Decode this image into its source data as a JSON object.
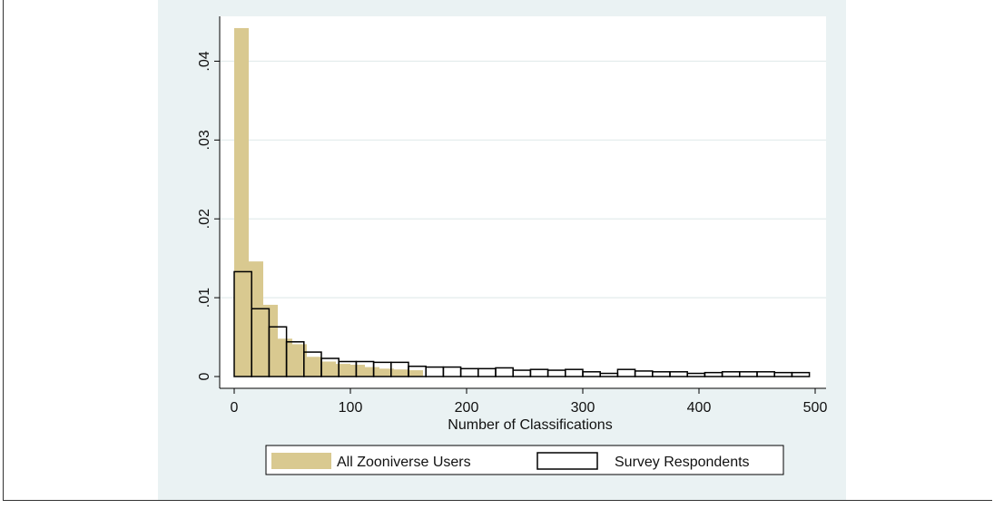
{
  "chart_data": {
    "type": "bar",
    "subtype": "overlaid-histogram",
    "title": "",
    "xlabel": "Number of Classifications",
    "ylabel": "",
    "xlim": [
      0,
      500
    ],
    "ylim": [
      0,
      0.045
    ],
    "grid": "horizontal",
    "legend_position": "bottom",
    "bin_width": 12.5,
    "x_ticks": [
      {
        "value": 0,
        "label": "0"
      },
      {
        "value": 100,
        "label": "100"
      },
      {
        "value": 200,
        "label": "200"
      },
      {
        "value": 300,
        "label": "300"
      },
      {
        "value": 400,
        "label": "400"
      },
      {
        "value": 500,
        "label": "500"
      }
    ],
    "y_ticks": [
      {
        "value": 0,
        "label": "0"
      },
      {
        "value": 0.01,
        "label": ".01"
      },
      {
        "value": 0.02,
        "label": ".02"
      },
      {
        "value": 0.03,
        "label": ".03"
      },
      {
        "value": 0.04,
        "label": ".04"
      }
    ],
    "series": [
      {
        "name": "All Zooniverse Users",
        "style": "filled",
        "color": "#d9c990",
        "x": [
          0,
          12.5,
          25,
          37.5,
          50,
          62.5,
          75,
          87.5,
          100,
          112.5,
          125,
          137.5,
          150
        ],
        "values": [
          0.0442,
          0.0146,
          0.0091,
          0.0048,
          0.0041,
          0.0025,
          0.0019,
          0.0016,
          0.0015,
          0.0012,
          0.001,
          0.0009,
          0.0008
        ]
      },
      {
        "name": "Survey Respondents",
        "style": "outline",
        "color": "#000000",
        "x": [
          0,
          15,
          30,
          45,
          60,
          75,
          90,
          105,
          120,
          135,
          150,
          165,
          180,
          195,
          210,
          225,
          240,
          255,
          270,
          285,
          300,
          315,
          330,
          345,
          360,
          375,
          390,
          405,
          420,
          435,
          450,
          465,
          480
        ],
        "values": [
          0.0133,
          0.0086,
          0.0063,
          0.0044,
          0.0031,
          0.0023,
          0.0019,
          0.0019,
          0.0018,
          0.0018,
          0.0013,
          0.0012,
          0.0012,
          0.001,
          0.001,
          0.0011,
          0.0008,
          0.0009,
          0.0008,
          0.0009,
          0.0006,
          0.0004,
          0.0009,
          0.0007,
          0.0006,
          0.0006,
          0.0004,
          0.0005,
          0.0006,
          0.0006,
          0.0006,
          0.0005,
          0.0005
        ],
        "bin_width": 15
      }
    ]
  }
}
